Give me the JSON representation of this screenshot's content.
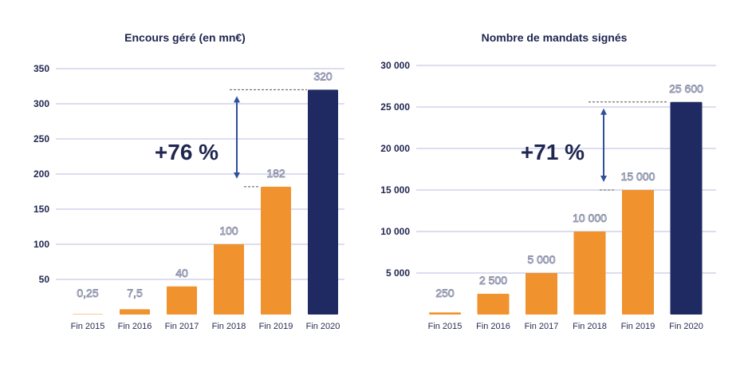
{
  "chart_data": [
    {
      "type": "bar",
      "title": "Encours géré (en mn€)",
      "categories": [
        "Fin 2015",
        "Fin 2016",
        "Fin 2017",
        "Fin 2018",
        "Fin 2019",
        "Fin 2020"
      ],
      "values": [
        0.25,
        7.5,
        40,
        100,
        182,
        320
      ],
      "value_labels": [
        "0,25",
        "7,5",
        "40",
        "100",
        "182",
        "320"
      ],
      "y_ticks": [
        50,
        100,
        150,
        200,
        250,
        300,
        350
      ],
      "y_tick_labels": [
        "50",
        "100",
        "150",
        "200",
        "250",
        "300",
        "350"
      ],
      "ylim": [
        0,
        350
      ],
      "annotation": "+76 %",
      "annotation_from": 182,
      "annotation_to": 320,
      "colors": {
        "bar": "#f0922e",
        "highlight": "#1f2a63",
        "grid": "#b9bde0",
        "arrow": "#2e4f9c"
      },
      "highlight_index": 5,
      "grid": true
    },
    {
      "type": "bar",
      "title": "Nombre de mandats signés",
      "categories": [
        "Fin 2015",
        "Fin 2016",
        "Fin 2017",
        "Fin 2018",
        "Fin 2019",
        "Fin 2020"
      ],
      "values": [
        250,
        2500,
        5000,
        10000,
        15000,
        25600
      ],
      "value_labels": [
        "250",
        "2 500",
        "5 000",
        "10 000",
        "15 000",
        "25 600"
      ],
      "y_ticks": [
        5000,
        10000,
        15000,
        20000,
        25000,
        30000
      ],
      "y_tick_labels": [
        "5 000",
        "10 000",
        "15 000",
        "20 000",
        "25 000",
        "30 000"
      ],
      "ylim": [
        0,
        30000
      ],
      "annotation": "+71 %",
      "annotation_from": 15000,
      "annotation_to": 25600,
      "colors": {
        "bar": "#f0922e",
        "highlight": "#1f2a63",
        "grid": "#b9bde0",
        "arrow": "#2e4f9c"
      },
      "highlight_index": 5,
      "grid": true
    }
  ]
}
